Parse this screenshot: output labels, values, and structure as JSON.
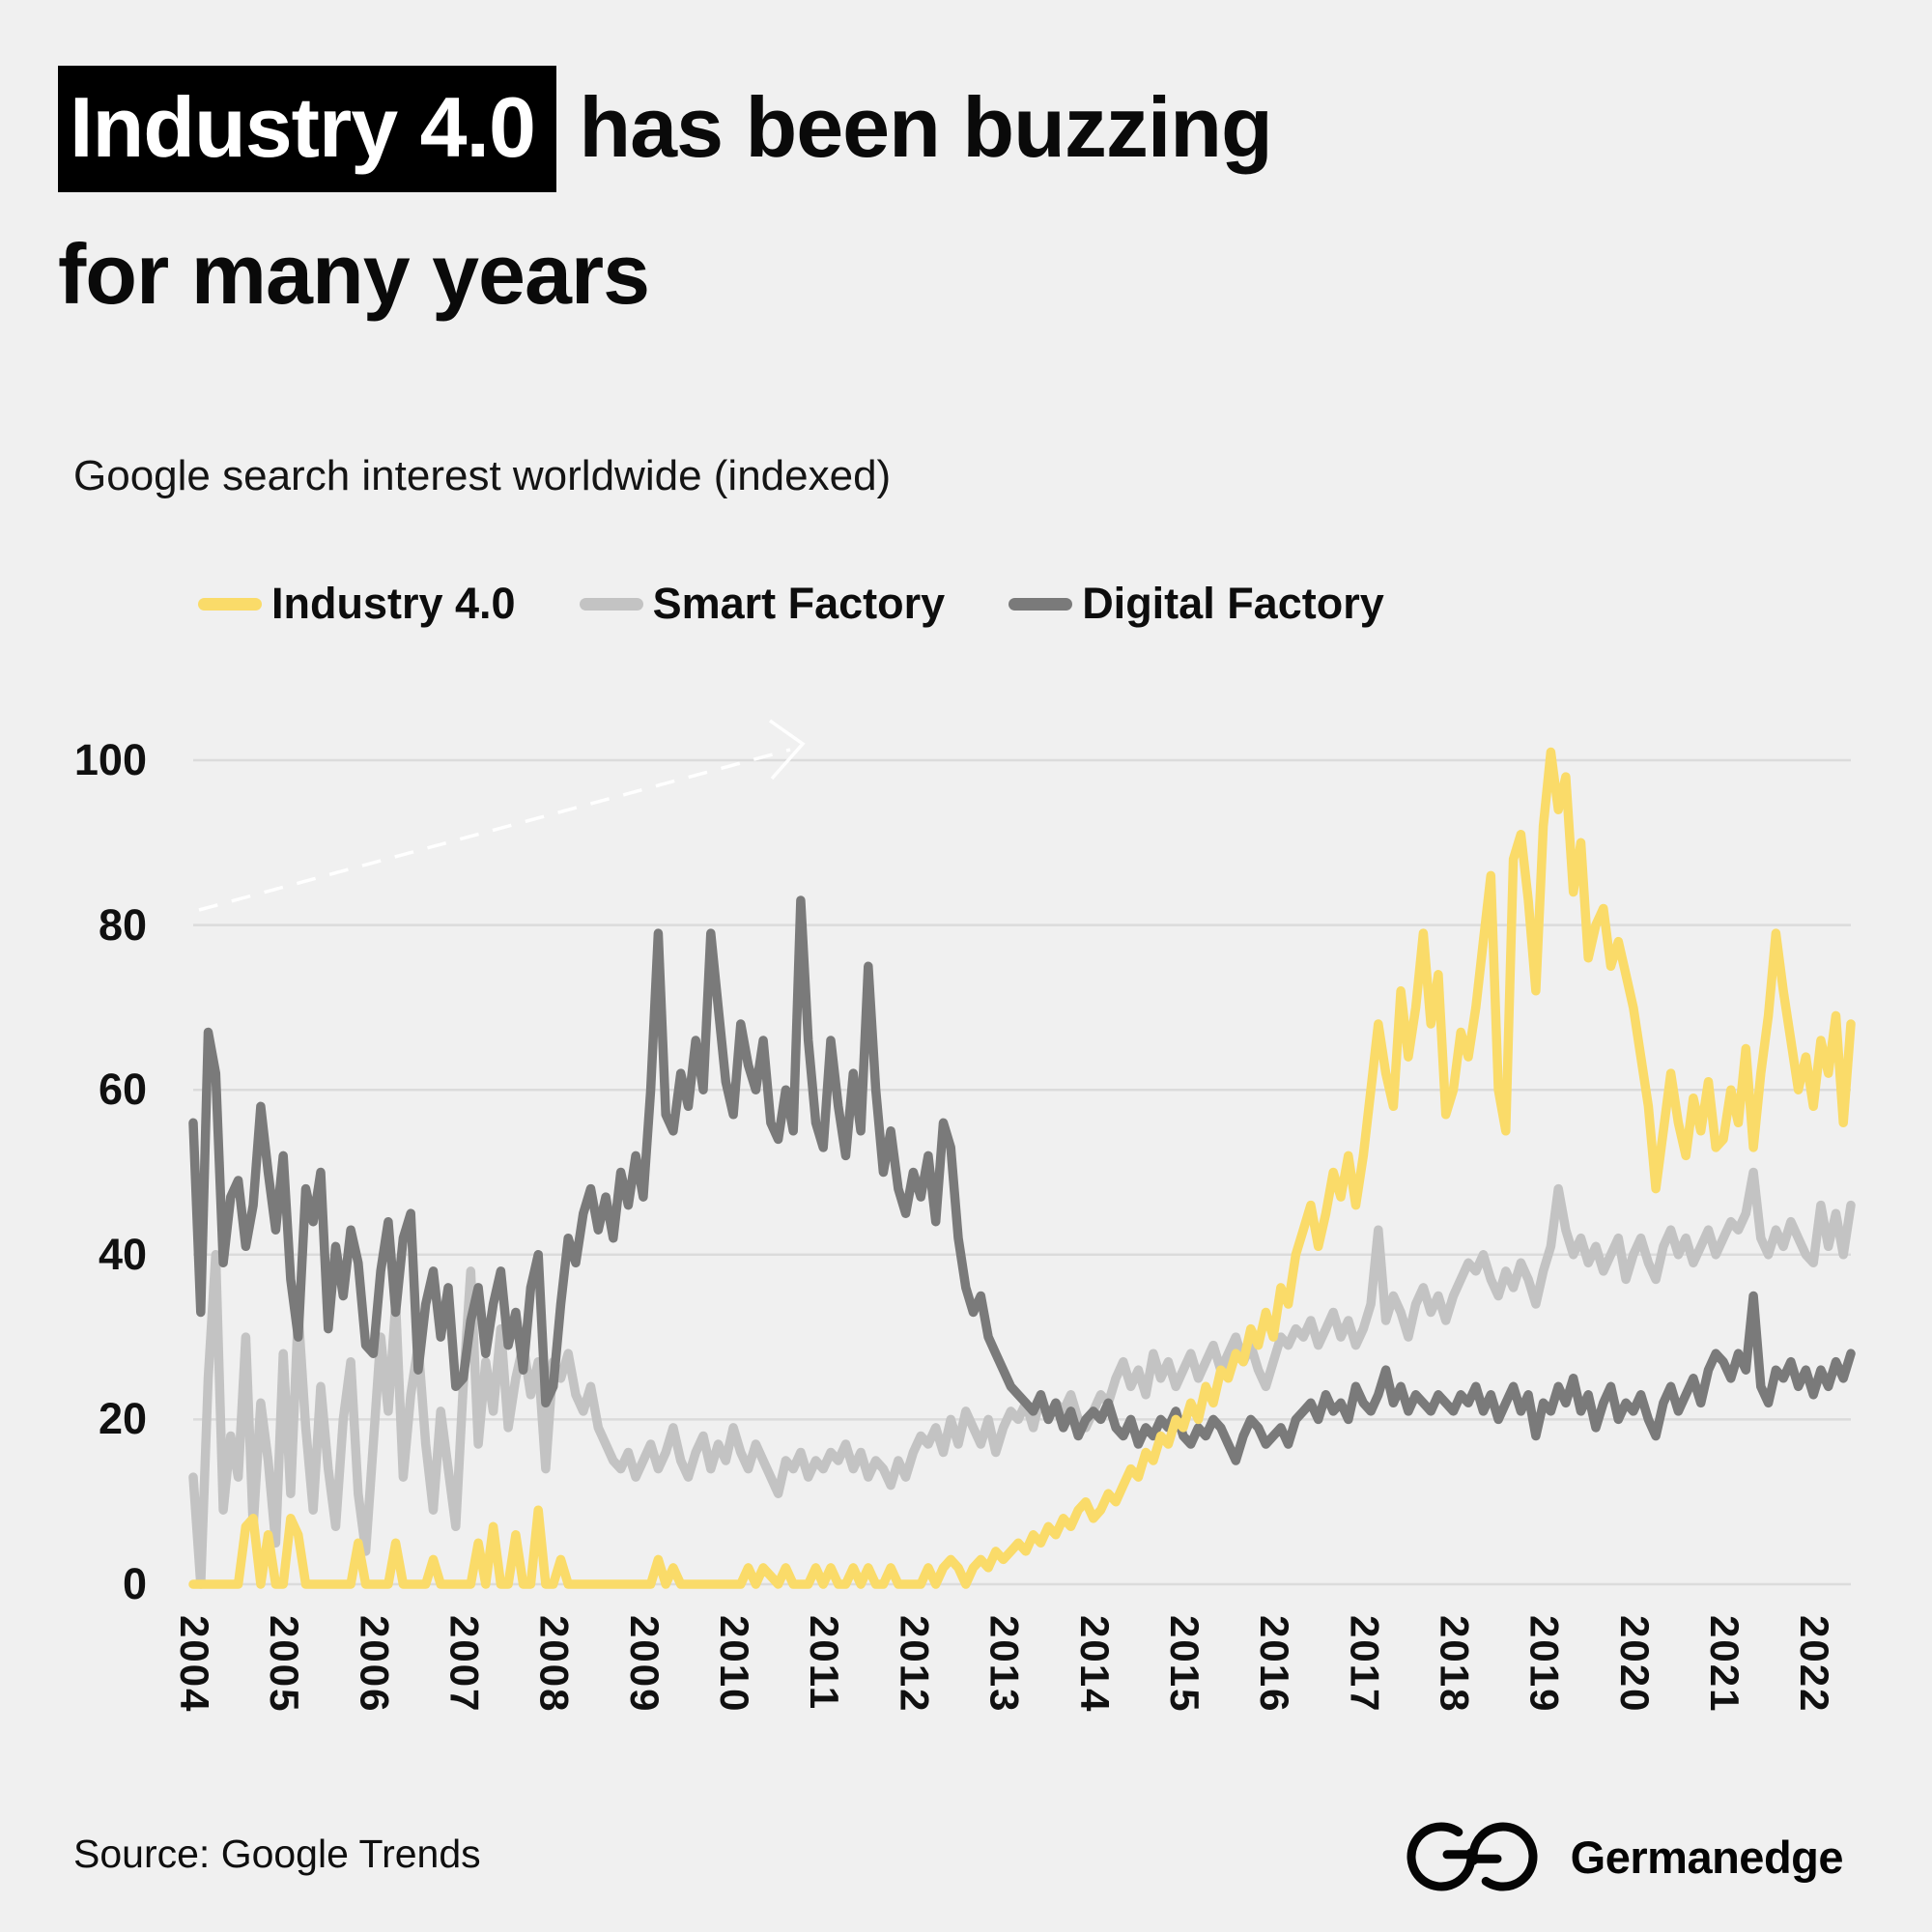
{
  "page": {
    "background": "#F0F0F0",
    "text_color": "#0A0A0A",
    "gridline_color": "#DBDBDB"
  },
  "title": {
    "highlight_text": "Industry 4.0",
    "line1_rest": " has been buzzing",
    "line2": "for many years",
    "highlight_bg": "#000000",
    "highlight_color": "#FFFFFF"
  },
  "subtitle": "Google search interest worldwide (indexed)",
  "legend": {
    "position": "top-left",
    "items": [
      {
        "label": "Industry 4.0",
        "color": "#FADB69"
      },
      {
        "label": "Smart Factory",
        "color": "#C3C3C3"
      },
      {
        "label": "Digital Factory",
        "color": "#7A7A7A"
      }
    ]
  },
  "chart_data": {
    "type": "line",
    "title": "Google search interest worldwide (indexed)",
    "x_unit": "month",
    "x_start": "2004-01",
    "x_end": "2022-06",
    "x_tick_labels": [
      "2004",
      "2005",
      "2006",
      "2007",
      "2008",
      "2009",
      "2010",
      "2011",
      "2012",
      "2013",
      "2014",
      "2015",
      "2016",
      "2017",
      "2018",
      "2019",
      "2020",
      "2021",
      "2022"
    ],
    "y_ticks": [
      0,
      20,
      40,
      60,
      80,
      100
    ],
    "ylim": [
      0,
      101
    ],
    "grid": "horizontal",
    "legend_position": "top-left",
    "draw_order": [
      1,
      2,
      0
    ],
    "annotation": {
      "type": "dashed-arrow",
      "color": "#FFFFFF",
      "description": "decorative dashed arrow rising left-to-right near top of plot"
    },
    "series": [
      {
        "name": "Industry 4.0",
        "color": "#FADB69",
        "values": [
          0,
          0,
          0,
          0,
          0,
          0,
          0,
          7,
          8,
          0,
          6,
          0,
          0,
          8,
          6,
          0,
          0,
          0,
          0,
          0,
          0,
          0,
          5,
          0,
          0,
          0,
          0,
          5,
          0,
          0,
          0,
          0,
          3,
          0,
          0,
          0,
          0,
          0,
          5,
          0,
          7,
          0,
          0,
          6,
          0,
          0,
          9,
          0,
          0,
          3,
          0,
          0,
          0,
          0,
          0,
          0,
          0,
          0,
          0,
          0,
          0,
          0,
          3,
          0,
          2,
          0,
          0,
          0,
          0,
          0,
          0,
          0,
          0,
          0,
          2,
          0,
          2,
          1,
          0,
          2,
          0,
          0,
          0,
          2,
          0,
          2,
          0,
          0,
          2,
          0,
          2,
          0,
          0,
          2,
          0,
          0,
          0,
          0,
          2,
          0,
          2,
          3,
          2,
          0,
          2,
          3,
          2,
          4,
          3,
          4,
          5,
          4,
          6,
          5,
          7,
          6,
          8,
          7,
          9,
          10,
          8,
          9,
          11,
          10,
          12,
          14,
          13,
          16,
          15,
          18,
          17,
          20,
          19,
          22,
          20,
          24,
          22,
          26,
          25,
          28,
          27,
          31,
          29,
          33,
          30,
          36,
          34,
          40,
          43,
          46,
          41,
          45,
          50,
          47,
          52,
          46,
          52,
          60,
          68,
          62,
          58,
          72,
          64,
          70,
          79,
          68,
          74,
          57,
          60,
          67,
          64,
          70,
          78,
          86,
          60,
          55,
          88,
          91,
          83,
          72,
          92,
          101,
          94,
          98,
          84,
          90,
          76,
          80,
          82,
          75,
          78,
          74,
          70,
          64,
          58,
          48,
          55,
          62,
          56,
          52,
          59,
          55,
          61,
          53,
          54,
          60,
          56,
          65,
          53,
          62,
          69,
          79,
          72,
          66,
          60,
          64,
          58,
          66,
          62,
          69,
          56,
          68
        ]
      },
      {
        "name": "Smart Factory",
        "color": "#C3C3C3",
        "values": [
          13,
          0,
          25,
          40,
          9,
          18,
          13,
          30,
          7,
          22,
          15,
          5,
          28,
          11,
          33,
          19,
          9,
          24,
          14,
          7,
          20,
          27,
          11,
          4,
          17,
          30,
          21,
          34,
          13,
          23,
          29,
          17,
          9,
          21,
          14,
          7,
          24,
          38,
          17,
          27,
          21,
          31,
          19,
          25,
          29,
          23,
          27,
          14,
          27,
          25,
          28,
          23,
          21,
          24,
          19,
          17,
          15,
          14,
          16,
          13,
          15,
          17,
          14,
          16,
          19,
          15,
          13,
          16,
          18,
          14,
          17,
          15,
          19,
          16,
          14,
          17,
          15,
          13,
          11,
          15,
          14,
          16,
          13,
          15,
          14,
          16,
          15,
          17,
          14,
          16,
          13,
          15,
          14,
          12,
          15,
          13,
          16,
          18,
          17,
          19,
          16,
          20,
          17,
          21,
          19,
          17,
          20,
          16,
          19,
          21,
          20,
          22,
          19,
          23,
          20,
          22,
          21,
          23,
          20,
          19,
          21,
          23,
          22,
          25,
          27,
          24,
          26,
          23,
          28,
          25,
          27,
          24,
          26,
          28,
          25,
          27,
          29,
          26,
          28,
          30,
          27,
          29,
          26,
          24,
          27,
          30,
          29,
          31,
          30,
          32,
          29,
          31,
          33,
          30,
          32,
          29,
          31,
          34,
          43,
          32,
          35,
          33,
          30,
          34,
          36,
          33,
          35,
          32,
          35,
          37,
          39,
          38,
          40,
          37,
          35,
          38,
          36,
          39,
          37,
          34,
          38,
          41,
          48,
          43,
          40,
          42,
          39,
          41,
          38,
          40,
          42,
          37,
          40,
          42,
          39,
          37,
          41,
          43,
          40,
          42,
          39,
          41,
          43,
          40,
          42,
          44,
          43,
          45,
          50,
          42,
          40,
          43,
          41,
          44,
          42,
          40,
          39,
          46,
          41,
          45,
          40,
          46
        ]
      },
      {
        "name": "Digital Factory",
        "color": "#7A7A7A",
        "values": [
          56,
          33,
          67,
          62,
          39,
          47,
          49,
          41,
          46,
          58,
          50,
          43,
          52,
          37,
          30,
          48,
          44,
          50,
          31,
          41,
          35,
          43,
          39,
          29,
          28,
          38,
          44,
          33,
          42,
          45,
          26,
          34,
          38,
          30,
          36,
          24,
          25,
          32,
          36,
          28,
          34,
          38,
          29,
          33,
          26,
          36,
          40,
          22,
          24,
          34,
          42,
          39,
          45,
          48,
          43,
          47,
          42,
          50,
          46,
          52,
          47,
          60,
          79,
          57,
          55,
          62,
          58,
          66,
          60,
          79,
          70,
          61,
          57,
          68,
          63,
          60,
          66,
          56,
          54,
          60,
          55,
          83,
          66,
          56,
          53,
          66,
          58,
          52,
          62,
          55,
          75,
          60,
          50,
          55,
          48,
          45,
          50,
          47,
          52,
          44,
          56,
          53,
          42,
          36,
          33,
          35,
          30,
          28,
          26,
          24,
          23,
          22,
          21,
          23,
          20,
          22,
          19,
          21,
          18,
          20,
          21,
          20,
          22,
          19,
          18,
          20,
          17,
          19,
          18,
          20,
          19,
          21,
          18,
          17,
          19,
          18,
          20,
          19,
          17,
          15,
          18,
          20,
          19,
          17,
          18,
          19,
          17,
          20,
          21,
          22,
          20,
          23,
          21,
          22,
          20,
          24,
          22,
          21,
          23,
          26,
          22,
          24,
          21,
          23,
          22,
          21,
          23,
          22,
          21,
          23,
          22,
          24,
          21,
          23,
          20,
          22,
          24,
          21,
          23,
          18,
          22,
          21,
          24,
          22,
          25,
          21,
          23,
          19,
          22,
          24,
          20,
          22,
          21,
          23,
          20,
          18,
          22,
          24,
          21,
          23,
          25,
          22,
          26,
          28,
          27,
          25,
          28,
          26,
          35,
          24,
          22,
          26,
          25,
          27,
          24,
          26,
          23,
          26,
          24,
          27,
          25,
          28
        ]
      }
    ]
  },
  "footer": {
    "source": "Source: Google Trends",
    "brand": "Germanedge"
  }
}
